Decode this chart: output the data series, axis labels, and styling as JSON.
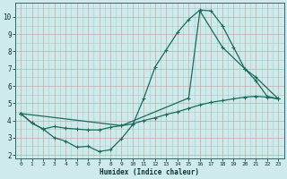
{
  "xlabel": "Humidex (Indice chaleur)",
  "bg_color": "#ceeaea",
  "grid_color_minor": "#b8d8d8",
  "grid_color_major": "#c8a0a0",
  "line_color": "#1a6b5a",
  "xlim": [
    -0.5,
    23.5
  ],
  "ylim": [
    1.8,
    10.8
  ],
  "xticks": [
    0,
    1,
    2,
    3,
    4,
    5,
    6,
    7,
    8,
    9,
    10,
    11,
    12,
    13,
    14,
    15,
    16,
    17,
    18,
    19,
    20,
    21,
    22,
    23
  ],
  "yticks": [
    2,
    3,
    4,
    5,
    6,
    7,
    8,
    9,
    10
  ],
  "line1_x": [
    0,
    1,
    2,
    3,
    4,
    5,
    6,
    7,
    8,
    9,
    10,
    11,
    12,
    13,
    14,
    15,
    16,
    17,
    18,
    19,
    20,
    21,
    22,
    23
  ],
  "line1_y": [
    4.4,
    3.85,
    3.5,
    3.65,
    3.55,
    3.5,
    3.45,
    3.45,
    3.6,
    3.7,
    3.8,
    4.0,
    4.15,
    4.35,
    4.5,
    4.7,
    4.9,
    5.05,
    5.15,
    5.25,
    5.35,
    5.4,
    5.35,
    5.25
  ],
  "line2_x": [
    0,
    1,
    2,
    3,
    4,
    5,
    6,
    7,
    8,
    9,
    10,
    11,
    12,
    13,
    14,
    15,
    16,
    17,
    18,
    19,
    20,
    21,
    22,
    23
  ],
  "line2_y": [
    4.4,
    3.85,
    3.5,
    3.0,
    2.8,
    2.45,
    2.5,
    2.2,
    2.3,
    2.95,
    3.75,
    5.3,
    7.1,
    8.1,
    9.1,
    9.85,
    10.4,
    10.35,
    9.5,
    8.25,
    7.0,
    6.3,
    5.4,
    5.25
  ],
  "line3_x": [
    0,
    9,
    15,
    16,
    18,
    20,
    21,
    23
  ],
  "line3_y": [
    4.4,
    3.7,
    5.3,
    10.35,
    8.25,
    7.0,
    6.5,
    5.25
  ]
}
